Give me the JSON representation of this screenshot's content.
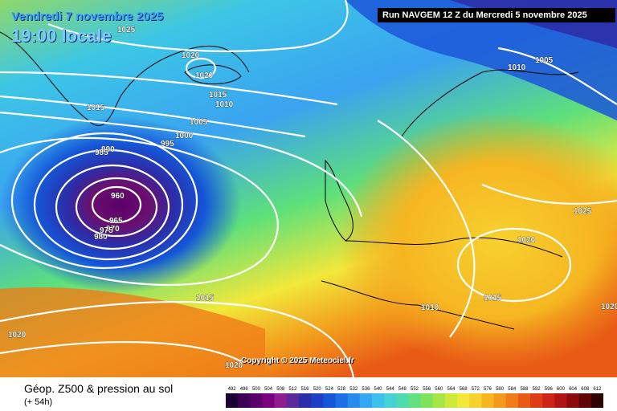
{
  "header": {
    "date": "Vendredi 7 novembre 2025",
    "local_time": "19:00 locale",
    "run": "Run NAVGEM 12 Z du Mercredi 5 novembre 2025"
  },
  "copyright": "Copyright © 2025 Meteociel.fr",
  "footer": {
    "title": "Géop. Z500 & pression au sol",
    "lead": "(+ 54h)"
  },
  "isobar_labels": [
    "1025",
    "1020",
    "1020",
    "1015",
    "1015",
    "1010",
    "1005",
    "1000",
    "995",
    "990",
    "985",
    "960",
    "965",
    "970",
    "975",
    "980",
    "1010",
    "1005",
    "1025",
    "1020",
    "1010",
    "1015",
    "1015",
    "1020",
    "1020",
    "1020"
  ],
  "colorscale": {
    "ticks": [
      "492",
      "496",
      "500",
      "504",
      "508",
      "512",
      "516",
      "520",
      "524",
      "528",
      "532",
      "536",
      "540",
      "544",
      "548",
      "552",
      "556",
      "560",
      "564",
      "568",
      "572",
      "576",
      "580",
      "584",
      "588",
      "592",
      "596",
      "600",
      "604",
      "608",
      "612"
    ],
    "colors": [
      "#1a0033",
      "#3d0057",
      "#5a006b",
      "#7a0080",
      "#8f1d8f",
      "#5a2a9a",
      "#2c2da8",
      "#1c3fc4",
      "#1456d8",
      "#1c6fe8",
      "#2a8af0",
      "#35a6f2",
      "#3cc0ec",
      "#44d2d4",
      "#4fdab0",
      "#63e082",
      "#7de35a",
      "#a5e646",
      "#cdea3a",
      "#f2e83a",
      "#f7d12e",
      "#f6b622",
      "#f39a1c",
      "#ef7c18",
      "#e85a16",
      "#dd3c16",
      "#cc2416",
      "#b01414",
      "#8c0c0c",
      "#600606",
      "#300000"
    ]
  },
  "colors": {
    "low_core": "#5a006b",
    "isobar": "#ffffff",
    "coast": "#000000"
  }
}
